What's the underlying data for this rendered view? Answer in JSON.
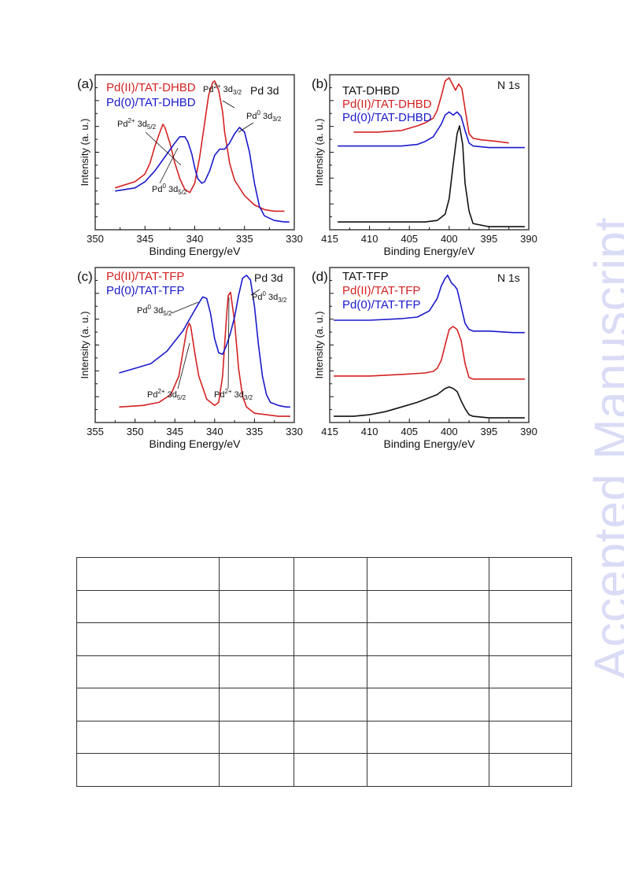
{
  "watermark": "Accepted Manuscript",
  "axis_labels": {
    "y": "Intensity (a. u.)",
    "x": "Binding Energy/eV"
  },
  "colors": {
    "black": "#111111",
    "red": "#d42222",
    "blue": "#1a1acc"
  },
  "chart_data": [
    {
      "type": "line",
      "panel_label": "(a)",
      "corner_label": "Pd 3d",
      "xlabel": "Binding Energy/eV",
      "ylabel": "Intensity (a. u.)",
      "xlim": [
        350,
        330
      ],
      "ylim": [
        0,
        1
      ],
      "ticks": [
        350,
        345,
        340,
        335,
        330
      ],
      "legend": [
        "Pd(II)/TAT-DHBD",
        "Pd(0)/TAT-DHBD"
      ],
      "annotations": [
        {
          "main": "Pd",
          "sup": "2+",
          "rest": " 3d",
          "sub": "3/2"
        },
        {
          "main": "Pd",
          "sup": "2+",
          "rest": " 3d",
          "sub": "5/2"
        },
        {
          "main": "Pd",
          "sup": "0",
          "rest": " 3d",
          "sub": "3/2"
        },
        {
          "main": "Pd",
          "sup": "0",
          "rest": " 3d",
          "sub": "5/2"
        }
      ],
      "series": [
        {
          "name": "Pd(II)/TAT-DHBD",
          "color": "#d42222",
          "x": [
            348,
            346,
            345,
            344.5,
            344,
            343.5,
            343.2,
            343,
            342.5,
            342,
            341.5,
            341,
            340.5,
            340,
            339.5,
            339,
            338.6,
            338.2,
            338,
            337.6,
            337.2,
            337,
            336.5,
            336,
            335,
            334,
            333,
            332,
            331
          ],
          "y": [
            0.27,
            0.31,
            0.36,
            0.43,
            0.54,
            0.63,
            0.68,
            0.66,
            0.56,
            0.43,
            0.33,
            0.26,
            0.24,
            0.3,
            0.47,
            0.69,
            0.87,
            0.95,
            0.96,
            0.9,
            0.76,
            0.63,
            0.43,
            0.32,
            0.22,
            0.16,
            0.13,
            0.12,
            0.12
          ]
        },
        {
          "name": "Pd(0)/TAT-DHBD",
          "color": "#1a1acc",
          "x": [
            348,
            346,
            345,
            344,
            343,
            342,
            341.5,
            341,
            340.7,
            340.3,
            340,
            339.7,
            339.3,
            339,
            338.5,
            338,
            337.5,
            337,
            336.5,
            336,
            335.5,
            335,
            334.5,
            334,
            333.5,
            333,
            332,
            331,
            330.5
          ],
          "y": [
            0.25,
            0.27,
            0.31,
            0.38,
            0.47,
            0.56,
            0.6,
            0.6,
            0.57,
            0.49,
            0.4,
            0.33,
            0.3,
            0.31,
            0.38,
            0.48,
            0.52,
            0.52,
            0.56,
            0.62,
            0.66,
            0.63,
            0.5,
            0.3,
            0.15,
            0.09,
            0.06,
            0.05,
            0.05
          ]
        }
      ]
    },
    {
      "type": "line",
      "panel_label": "(b)",
      "corner_label": "N 1s",
      "xlabel": "Binding Energy/eV",
      "ylabel": "Intensity (a. u.)",
      "xlim": [
        415,
        390
      ],
      "ylim": [
        0,
        1
      ],
      "ticks": [
        415,
        410,
        405,
        400,
        395,
        390
      ],
      "legend": [
        "TAT-DHBD",
        "Pd(II)/TAT-DHBD",
        "Pd(0)/TAT-DHBD"
      ],
      "annotations": [],
      "series": [
        {
          "name": "TAT-DHBD",
          "color": "#111111",
          "x": [
            414,
            410,
            406,
            403,
            401.5,
            400.5,
            400,
            399.5,
            399,
            398.7,
            398.3,
            398,
            397.5,
            397,
            395,
            392,
            390.5
          ],
          "y": [
            0.05,
            0.05,
            0.05,
            0.05,
            0.06,
            0.1,
            0.2,
            0.42,
            0.62,
            0.67,
            0.55,
            0.3,
            0.12,
            0.04,
            0.02,
            0.02,
            0.02
          ]
        },
        {
          "name": "Pd(II)/TAT-DHBD",
          "color": "#d42222",
          "x": [
            412,
            409,
            406,
            404,
            403,
            402,
            401.5,
            401,
            400.5,
            400,
            399.5,
            399.2,
            398.8,
            398.4,
            398,
            397.5,
            397,
            396,
            394,
            392.5
          ],
          "y": [
            0.63,
            0.63,
            0.64,
            0.67,
            0.69,
            0.72,
            0.77,
            0.86,
            0.96,
            0.98,
            0.93,
            0.9,
            0.94,
            0.91,
            0.78,
            0.62,
            0.59,
            0.58,
            0.57,
            0.56
          ]
        },
        {
          "name": "Pd(0)/TAT-DHBD",
          "color": "#1a1acc",
          "x": [
            414,
            410,
            406,
            404,
            403,
            402,
            401,
            400.5,
            400,
            399.5,
            399,
            398.5,
            398,
            397.5,
            397,
            395,
            392,
            390.5
          ],
          "y": [
            0.54,
            0.54,
            0.54,
            0.55,
            0.57,
            0.6,
            0.68,
            0.74,
            0.76,
            0.74,
            0.76,
            0.73,
            0.64,
            0.56,
            0.54,
            0.53,
            0.53,
            0.53
          ]
        }
      ]
    },
    {
      "type": "line",
      "panel_label": "(c)",
      "corner_label": "Pd 3d",
      "xlabel": "Binding Energy/eV",
      "ylabel": "Intensity (a. u.)",
      "xlim": [
        355,
        330
      ],
      "ylim": [
        0,
        1
      ],
      "ticks": [
        355,
        350,
        345,
        340,
        335,
        330
      ],
      "legend": [
        "Pd(II)/TAT-TFP",
        "Pd(0)/TAT-TFP"
      ],
      "annotations": [
        {
          "main": "Pd",
          "sup": "0",
          "rest": " 3d",
          "sub": "5/2"
        },
        {
          "main": "Pd",
          "sup": "0",
          "rest": " 3d",
          "sub": "3/2"
        },
        {
          "main": "Pd",
          "sup": "2+",
          "rest": " 3d",
          "sub": "5/2"
        },
        {
          "main": "Pd",
          "sup": "2+",
          "rest": " 3d",
          "sub": "3/2"
        }
      ],
      "series": [
        {
          "name": "Pd(II)/TAT-TFP",
          "color": "#d42222",
          "x": [
            352,
            349,
            347,
            345.5,
            344.5,
            344,
            343.5,
            343.2,
            343,
            342.5,
            342,
            341,
            340,
            339.5,
            339,
            338.6,
            338.3,
            338,
            337.5,
            337,
            336.5,
            336,
            335,
            333.5,
            332,
            330.5
          ],
          "y": [
            0.1,
            0.11,
            0.13,
            0.18,
            0.3,
            0.45,
            0.6,
            0.64,
            0.62,
            0.45,
            0.3,
            0.15,
            0.11,
            0.13,
            0.3,
            0.62,
            0.82,
            0.84,
            0.65,
            0.35,
            0.17,
            0.1,
            0.06,
            0.05,
            0.04,
            0.04
          ]
        },
        {
          "name": "Pd(0)/TAT-TFP",
          "color": "#1a1acc",
          "x": [
            352,
            350,
            348,
            346,
            344,
            343,
            342,
            341.5,
            341,
            340.5,
            340,
            339.5,
            339,
            338.5,
            338,
            337.5,
            337,
            336.5,
            336,
            335.5,
            335,
            334.5,
            334,
            333.5,
            333,
            332,
            331,
            330.5
          ],
          "y": [
            0.32,
            0.35,
            0.38,
            0.46,
            0.59,
            0.68,
            0.77,
            0.81,
            0.8,
            0.7,
            0.54,
            0.45,
            0.44,
            0.5,
            0.58,
            0.68,
            0.82,
            0.93,
            0.95,
            0.92,
            0.75,
            0.5,
            0.3,
            0.18,
            0.13,
            0.11,
            0.1,
            0.1
          ]
        }
      ]
    },
    {
      "type": "line",
      "panel_label": "(d)",
      "corner_label": "N 1s",
      "xlabel": "Binding Energy/eV",
      "ylabel": "Intensity (a. u.)",
      "xlim": [
        415,
        390
      ],
      "ylim": [
        0,
        1
      ],
      "ticks": [
        415,
        410,
        405,
        400,
        395,
        390
      ],
      "legend": [
        "TAT-TFP",
        "Pd(II)/TAT-TFP",
        "Pd(0)/TAT-TFP"
      ],
      "annotations": [],
      "series": [
        {
          "name": "TAT-TFP",
          "color": "#111111",
          "x": [
            414.5,
            412,
            410,
            408,
            406,
            404,
            402.5,
            401.5,
            400.5,
            400,
            399.5,
            399,
            398.5,
            398,
            397.5,
            397,
            395,
            392,
            390.5
          ],
          "y": [
            0.04,
            0.04,
            0.05,
            0.07,
            0.1,
            0.13,
            0.16,
            0.18,
            0.22,
            0.23,
            0.22,
            0.2,
            0.14,
            0.09,
            0.05,
            0.04,
            0.03,
            0.03,
            0.03
          ]
        },
        {
          "name": "Pd(II)/TAT-TFP",
          "color": "#d42222",
          "x": [
            414.5,
            410,
            406,
            403,
            402,
            401.5,
            401,
            400.5,
            400,
            399.5,
            399,
            398.5,
            398,
            397.5,
            397,
            395,
            392,
            390.5
          ],
          "y": [
            0.3,
            0.3,
            0.31,
            0.32,
            0.33,
            0.35,
            0.4,
            0.5,
            0.6,
            0.62,
            0.6,
            0.53,
            0.38,
            0.29,
            0.28,
            0.28,
            0.28,
            0.28
          ]
        },
        {
          "name": "Pd(0)/TAT-TFP",
          "color": "#1a1acc",
          "x": [
            414.5,
            410,
            406,
            404,
            402.5,
            401.5,
            401,
            400.5,
            400.2,
            400,
            399.7,
            399.3,
            399,
            398.5,
            398,
            397.5,
            397,
            395,
            392,
            390.5
          ],
          "y": [
            0.66,
            0.66,
            0.67,
            0.68,
            0.72,
            0.8,
            0.88,
            0.93,
            0.95,
            0.93,
            0.9,
            0.88,
            0.86,
            0.75,
            0.64,
            0.6,
            0.59,
            0.59,
            0.58,
            0.58
          ]
        }
      ]
    }
  ],
  "table": {
    "columns": 5,
    "rows": [
      [
        "",
        "",
        "",
        "",
        ""
      ],
      [
        "",
        "",
        "",
        "",
        ""
      ],
      [
        "",
        "",
        "",
        "",
        ""
      ],
      [
        "",
        "",
        "",
        "",
        ""
      ],
      [
        "",
        "",
        "",
        "",
        ""
      ],
      [
        "",
        "",
        "",
        "",
        ""
      ],
      [
        "",
        "",
        "",
        "",
        ""
      ]
    ]
  }
}
